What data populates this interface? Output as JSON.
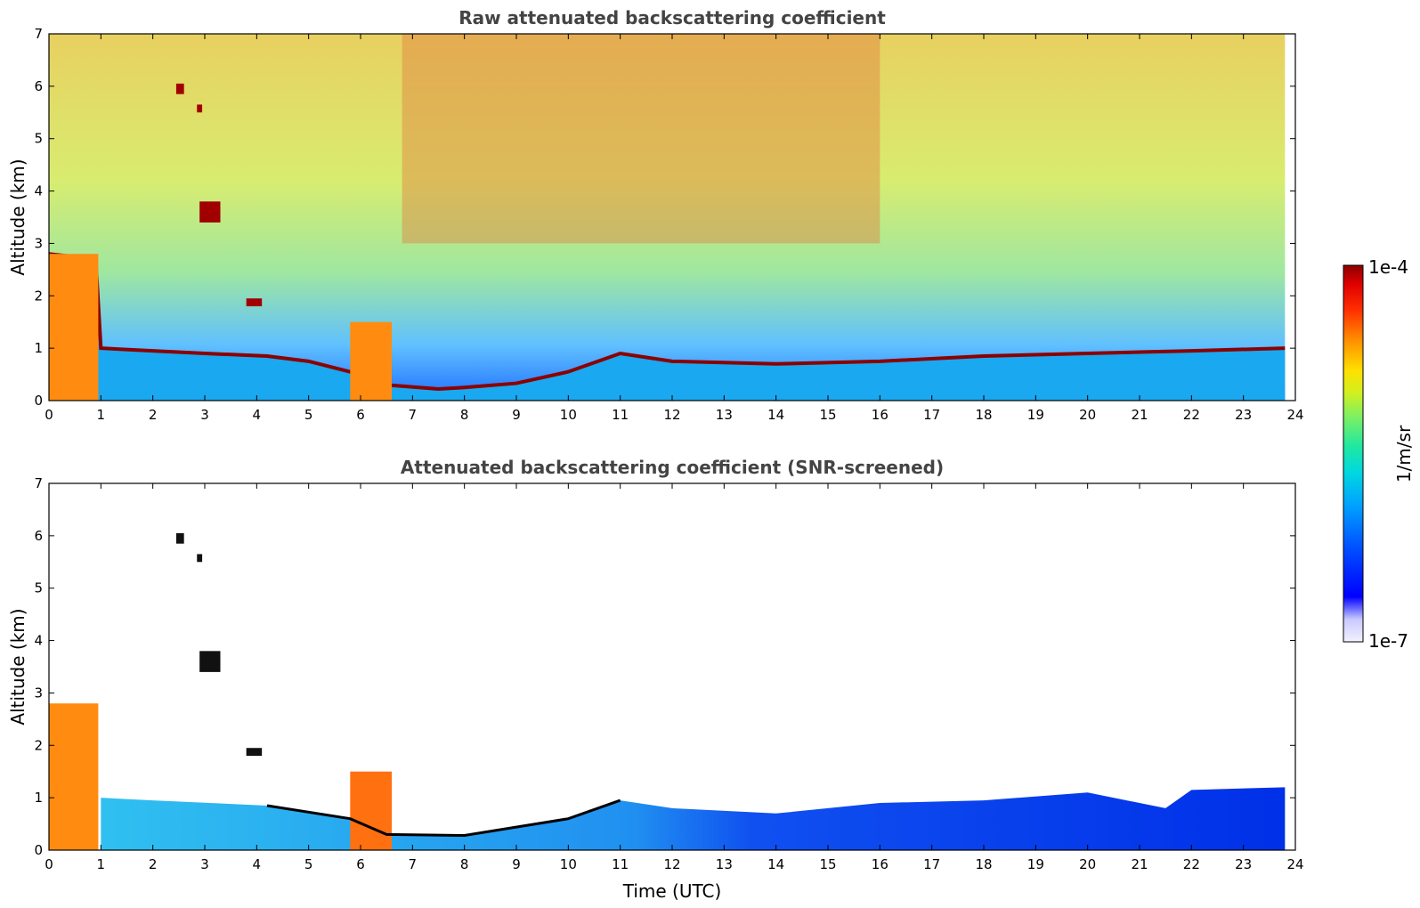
{
  "chart_data": [
    {
      "type": "heatmap",
      "title": "Raw attenuated backscattering coefficient",
      "xlabel": "",
      "ylabel": "Altitude (km)",
      "xlim": [
        0,
        24
      ],
      "ylim": [
        0,
        7
      ],
      "x_ticks": [
        "0",
        "1",
        "2",
        "3",
        "4",
        "5",
        "6",
        "7",
        "8",
        "9",
        "10",
        "11",
        "12",
        "13",
        "14",
        "15",
        "16",
        "17",
        "18",
        "19",
        "20",
        "21",
        "22",
        "23",
        "24"
      ],
      "y_ticks": [
        "0",
        "1",
        "2",
        "3",
        "4",
        "5",
        "6",
        "7"
      ],
      "data_end_time": 23.8,
      "boundary_layer_top_km": [
        {
          "t": 0,
          "h": 2.8
        },
        {
          "t": 0.9,
          "h": 2.7
        },
        {
          "t": 1,
          "h": 1.0
        },
        {
          "t": 2,
          "h": 0.95
        },
        {
          "t": 3,
          "h": 0.9
        },
        {
          "t": 4.2,
          "h": 0.85
        },
        {
          "t": 5,
          "h": 0.75
        },
        {
          "t": 5.8,
          "h": 0.55
        },
        {
          "t": 6.5,
          "h": 0.3
        },
        {
          "t": 7.5,
          "h": 0.22
        },
        {
          "t": 8,
          "h": 0.25
        },
        {
          "t": 9,
          "h": 0.33
        },
        {
          "t": 10,
          "h": 0.55
        },
        {
          "t": 11,
          "h": 0.9
        },
        {
          "t": 12,
          "h": 0.75
        },
        {
          "t": 14,
          "h": 0.7
        },
        {
          "t": 16,
          "h": 0.75
        },
        {
          "t": 18,
          "h": 0.85
        },
        {
          "t": 20,
          "h": 0.9
        },
        {
          "t": 22,
          "h": 0.95
        },
        {
          "t": 23.8,
          "h": 1.0
        }
      ],
      "cloud_features_km": [
        {
          "t0": 0.0,
          "t1": 0.95,
          "h0": 0.0,
          "h1": 2.8,
          "level": "high"
        },
        {
          "t0": 2.45,
          "t1": 2.6,
          "h0": 5.85,
          "h1": 6.05,
          "level": "max"
        },
        {
          "t0": 2.85,
          "t1": 2.95,
          "h0": 5.5,
          "h1": 5.65,
          "level": "max"
        },
        {
          "t0": 2.9,
          "t1": 3.3,
          "h0": 3.4,
          "h1": 3.8,
          "level": "max"
        },
        {
          "t0": 3.8,
          "t1": 4.1,
          "h0": 1.8,
          "h1": 1.95,
          "level": "max"
        },
        {
          "t0": 5.8,
          "t1": 6.6,
          "h0": 0.0,
          "h1": 1.5,
          "level": "high"
        }
      ]
    },
    {
      "type": "heatmap",
      "title": "Attenuated backscattering coefficient (SNR-screened)",
      "xlabel": "Time (UTC)",
      "ylabel": "Altitude (km)",
      "xlim": [
        0,
        24
      ],
      "ylim": [
        0,
        7
      ],
      "x_ticks": [
        "0",
        "1",
        "2",
        "3",
        "4",
        "5",
        "6",
        "7",
        "8",
        "9",
        "10",
        "11",
        "12",
        "13",
        "14",
        "15",
        "16",
        "17",
        "18",
        "19",
        "20",
        "21",
        "22",
        "23",
        "24"
      ],
      "y_ticks": [
        "0",
        "1",
        "2",
        "3",
        "4",
        "5",
        "6",
        "7"
      ],
      "screened_top_km": [
        {
          "t": 1,
          "h": 1.0
        },
        {
          "t": 2,
          "h": 0.95
        },
        {
          "t": 4.2,
          "h": 0.85
        },
        {
          "t": 5.8,
          "h": 0.6
        },
        {
          "t": 6.5,
          "h": 0.3
        },
        {
          "t": 8,
          "h": 0.28
        },
        {
          "t": 10,
          "h": 0.6
        },
        {
          "t": 11,
          "h": 0.95
        },
        {
          "t": 12,
          "h": 0.8
        },
        {
          "t": 14,
          "h": 0.7
        },
        {
          "t": 16,
          "h": 0.9
        },
        {
          "t": 18,
          "h": 0.95
        },
        {
          "t": 20,
          "h": 1.1
        },
        {
          "t": 21.5,
          "h": 0.8
        },
        {
          "t": 22,
          "h": 1.15
        },
        {
          "t": 23.8,
          "h": 1.2
        }
      ]
    }
  ],
  "colorbar": {
    "max_label": "1e-4",
    "min_label": "1e-7",
    "unit_label": "1/m/sr",
    "colors": [
      "#f2f2ff",
      "#c8c8ff",
      "#0000ff",
      "#0050ff",
      "#00a0ff",
      "#00d8e0",
      "#20e8a0",
      "#80f060",
      "#d0f020",
      "#ffe000",
      "#ff9000",
      "#ff3000",
      "#e00000",
      "#8b0000"
    ]
  }
}
